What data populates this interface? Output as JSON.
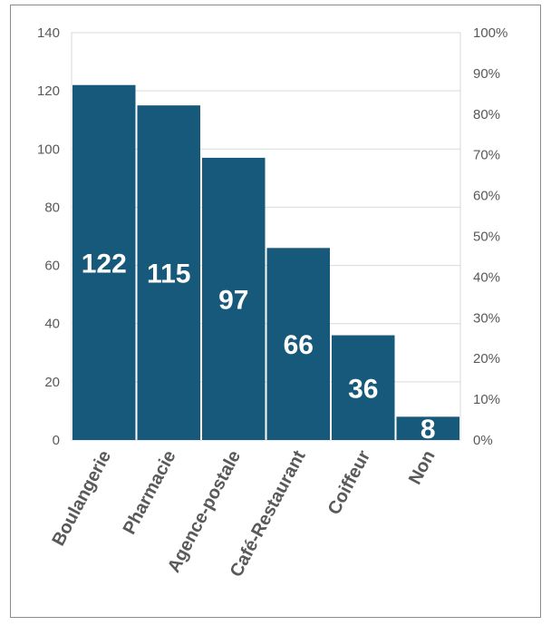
{
  "chart_data": {
    "type": "bar",
    "categories": [
      "Boulangerie",
      "Pharmacie",
      "Agence-postale",
      "Café-Restaurant",
      "Coiffeur",
      "Non"
    ],
    "values": [
      122,
      115,
      97,
      66,
      36,
      8
    ],
    "data_labels": [
      "122",
      "115",
      "97",
      "66",
      "36",
      "8"
    ],
    "ylim": [
      0,
      140
    ],
    "y_ticks": [
      "0",
      "20",
      "40",
      "60",
      "80",
      "100",
      "120",
      "140"
    ],
    "y2_ticks": [
      "0%",
      "10%",
      "20%",
      "30%",
      "40%",
      "50%",
      "60%",
      "70%",
      "80%",
      "90%",
      "100%"
    ],
    "y2lim": [
      0,
      100
    ],
    "grid": true,
    "legend": "none",
    "bar_color": "#17597a"
  }
}
